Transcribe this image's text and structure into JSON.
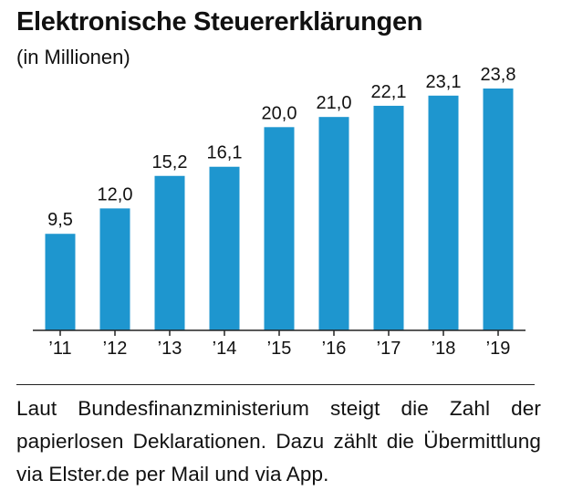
{
  "title": "Elektronische Steuererklärungen",
  "subtitle": "(in Millionen)",
  "caption": "Laut Bundesfinanzministerium steigt die Zahl der papierlosen Deklarationen. Dazu zählt die Übermittlung via Elster.de per Mail und via App.",
  "colors": {
    "bar": "#1e96cf",
    "text": "#111111",
    "axis": "#222222"
  },
  "chart_data": {
    "type": "bar",
    "title": "Elektronische Steuererklärungen",
    "subtitle": "(in Millionen)",
    "categories": [
      "’11",
      "’12",
      "’13",
      "’14",
      "’15",
      "’16",
      "’17",
      "’18",
      "’19"
    ],
    "values": [
      9.5,
      12.0,
      15.2,
      16.1,
      20.0,
      21.0,
      22.1,
      23.1,
      23.8
    ],
    "labels": [
      "9,5",
      "12,0",
      "15,2",
      "16,1",
      "20,0",
      "21,0",
      "22,1",
      "23,1",
      "23,8"
    ],
    "xlabel": "",
    "ylabel": "",
    "ylim": [
      0,
      23.8
    ],
    "grid": false,
    "legend": false
  }
}
